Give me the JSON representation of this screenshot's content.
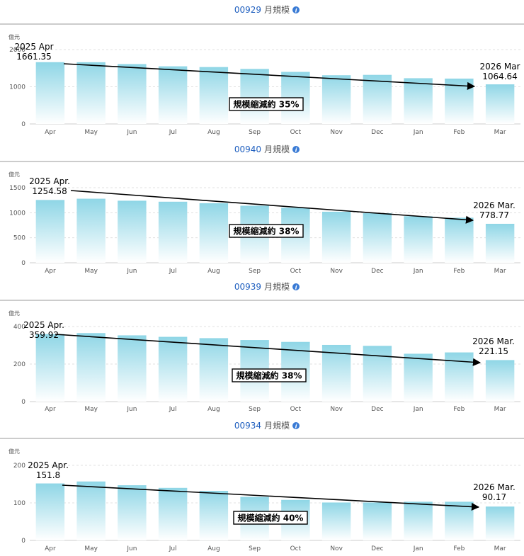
{
  "charts": [
    {
      "code": "00929",
      "title_suffix": "月規模",
      "unit": "億元",
      "start_label_line1": "2025 Apr",
      "start_label_line2": "1661.35",
      "end_label_line1": "2026 Mar",
      "end_label_line2": "1064.64",
      "annotation": "規模縮減約 35%"
    },
    {
      "code": "00940",
      "title_suffix": "月規模",
      "unit": "億元",
      "start_label_line1": "2025 Apr.",
      "start_label_line2": "1254.58",
      "end_label_line1": "2026 Mar.",
      "end_label_line2": "778.77",
      "annotation": "規模縮減約 38%"
    },
    {
      "code": "00939",
      "title_suffix": "月規模",
      "unit": "億元",
      "start_label_line1": "2025 Apr.",
      "start_label_line2": "359.92",
      "end_label_line1": "2026 Mar.",
      "end_label_line2": "221.15",
      "annotation": "規模縮減約 38%"
    },
    {
      "code": "00934",
      "title_suffix": "月規模",
      "unit": "億元",
      "start_label_line1": "2025 Apr.",
      "start_label_line2": "151.8",
      "end_label_line1": "2026 Mar.",
      "end_label_line2": "90.17",
      "annotation": "規模縮減約 40%"
    }
  ],
  "colors": {
    "code": "#1f5fbf",
    "title": "#555555",
    "info_icon": "#3a7bd5",
    "bar_top": "#8fd6e6",
    "bar_bottom": "#ffffff",
    "axis_text": "#555555",
    "trend_line": "#000000"
  },
  "chart_data": [
    {
      "type": "bar",
      "categories": [
        "Apr",
        "May",
        "Jun",
        "Jul",
        "Aug",
        "Sep",
        "Oct",
        "Nov",
        "Dec",
        "Jan",
        "Feb",
        "Mar"
      ],
      "values": [
        1661.35,
        1660,
        1610,
        1550,
        1530,
        1480,
        1400,
        1310,
        1320,
        1230,
        1220,
        1064.64
      ],
      "ylim": [
        0,
        2000
      ],
      "yticks": [
        0,
        1000,
        2000
      ],
      "grid": true,
      "legend": "none"
    },
    {
      "type": "bar",
      "categories": [
        "Apr",
        "May",
        "Jun",
        "Jul",
        "Aug",
        "Sep",
        "Oct",
        "Nov",
        "Dec",
        "Jan",
        "Feb",
        "Mar"
      ],
      "values": [
        1254.58,
        1280,
        1240,
        1220,
        1190,
        1140,
        1100,
        1020,
        990,
        930,
        900,
        778.77
      ],
      "ylim": [
        0,
        1500
      ],
      "yticks": [
        0,
        500,
        1000,
        1500
      ],
      "grid": true,
      "legend": "none"
    },
    {
      "type": "bar",
      "categories": [
        "Apr",
        "May",
        "Jun",
        "Jul",
        "Aug",
        "Sep",
        "Oct",
        "Nov",
        "Dec",
        "Jan",
        "Feb",
        "Mar"
      ],
      "values": [
        359.92,
        365,
        353,
        345,
        338,
        328,
        318,
        302,
        297,
        255,
        262,
        221.15
      ],
      "ylim": [
        0,
        400
      ],
      "yticks": [
        0,
        200,
        400
      ],
      "grid": true,
      "legend": "none"
    },
    {
      "type": "bar",
      "categories": [
        "Apr",
        "May",
        "Jun",
        "Jul",
        "Aug",
        "Sep",
        "Oct",
        "Nov",
        "Dec",
        "Jan",
        "Feb",
        "Mar"
      ],
      "values": [
        151.8,
        157,
        147,
        140,
        132,
        116,
        108,
        101,
        101,
        103,
        103,
        90.17
      ],
      "ylim": [
        0,
        200
      ],
      "yticks": [
        0,
        100,
        200
      ],
      "grid": true,
      "legend": "none"
    }
  ]
}
